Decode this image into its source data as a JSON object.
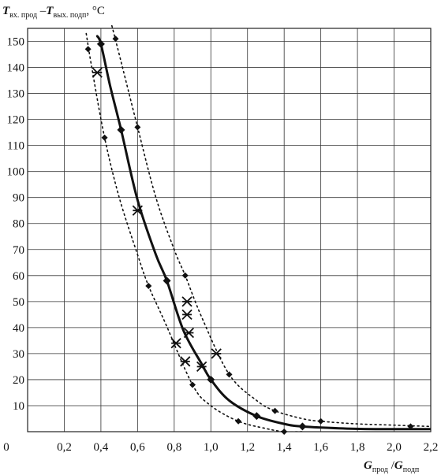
{
  "chart_data": {
    "type": "scatter",
    "ylabel": {
      "t1": "T",
      "s1": "вх. прод",
      "dash": " –",
      "t2": "T",
      "s2": "вых. подп",
      "unit": ", °C"
    },
    "xlabel": {
      "t1": "G",
      "s1": "прод",
      "slash": " /",
      "t2": "G",
      "s2": "подп"
    },
    "xlim": [
      0,
      2.2
    ],
    "ylim": [
      0,
      155
    ],
    "x_ticks": [
      "0",
      "0,2",
      "0,4",
      "0,6",
      "0,8",
      "1,0",
      "1,2",
      "1,4",
      "1,6",
      "1,8",
      "2,0",
      "2,2"
    ],
    "x_tick_values": [
      0,
      0.2,
      0.4,
      0.6,
      0.8,
      1.0,
      1.2,
      1.4,
      1.6,
      1.8,
      2.0,
      2.2
    ],
    "y_ticks": [
      "10",
      "20",
      "30",
      "40",
      "50",
      "60",
      "70",
      "80",
      "90",
      "100",
      "110",
      "120",
      "130",
      "140",
      "150"
    ],
    "y_tick_values": [
      10,
      20,
      30,
      40,
      50,
      60,
      70,
      80,
      90,
      100,
      110,
      120,
      130,
      140,
      150
    ],
    "grid": true,
    "series": [
      {
        "style": "solid-line-diamond-markers",
        "color": "#111111",
        "x": [
          0.4,
          0.51,
          0.76,
          1.0,
          1.25,
          1.5
        ],
        "y": [
          149,
          116,
          58,
          20,
          6,
          2
        ],
        "curve_x": [
          0.38,
          0.4,
          0.45,
          0.51,
          0.6,
          0.7,
          0.76,
          0.85,
          0.95,
          1.0,
          1.1,
          1.25,
          1.4,
          1.5,
          1.7,
          1.9,
          2.2
        ],
        "curve_y": [
          152,
          149,
          133,
          116,
          89,
          68,
          58,
          39,
          26,
          20,
          12,
          6,
          3,
          2,
          1.3,
          1,
          1
        ]
      },
      {
        "style": "dotted-line-diamond-markers",
        "color": "#111111",
        "x": [
          0.48,
          0.6,
          0.86,
          1.1,
          1.35,
          1.6,
          2.09
        ],
        "y": [
          151,
          117,
          60,
          22,
          8,
          4,
          2
        ],
        "curve_x": [
          0.46,
          0.5,
          0.6,
          0.7,
          0.8,
          0.86,
          0.95,
          1.1,
          1.25,
          1.35,
          1.5,
          1.6,
          1.8,
          2.0,
          2.2
        ],
        "curve_y": [
          156,
          145,
          117,
          90,
          70,
          60,
          44,
          22,
          12,
          8,
          5,
          4,
          3,
          2.5,
          2
        ]
      },
      {
        "style": "dotted-line-diamond-markers",
        "color": "#111111",
        "x": [
          0.33,
          0.42,
          0.66,
          0.9,
          1.15,
          1.4
        ],
        "y": [
          147,
          113,
          56,
          18,
          4,
          0
        ],
        "curve_x": [
          0.32,
          0.35,
          0.42,
          0.5,
          0.6,
          0.66,
          0.75,
          0.9,
          1.0,
          1.15,
          1.3,
          1.4,
          1.5
        ],
        "curve_y": [
          153,
          140,
          113,
          90,
          68,
          56,
          42,
          18,
          10,
          4,
          1.2,
          0,
          0
        ]
      },
      {
        "style": "x-star-markers",
        "color": "#111111",
        "x": [
          0.38,
          0.6,
          0.81,
          0.86,
          0.87,
          0.87,
          0.88,
          0.95,
          1.03
        ],
        "y": [
          138,
          85,
          34,
          27,
          45,
          50,
          38,
          25,
          30
        ]
      }
    ]
  }
}
